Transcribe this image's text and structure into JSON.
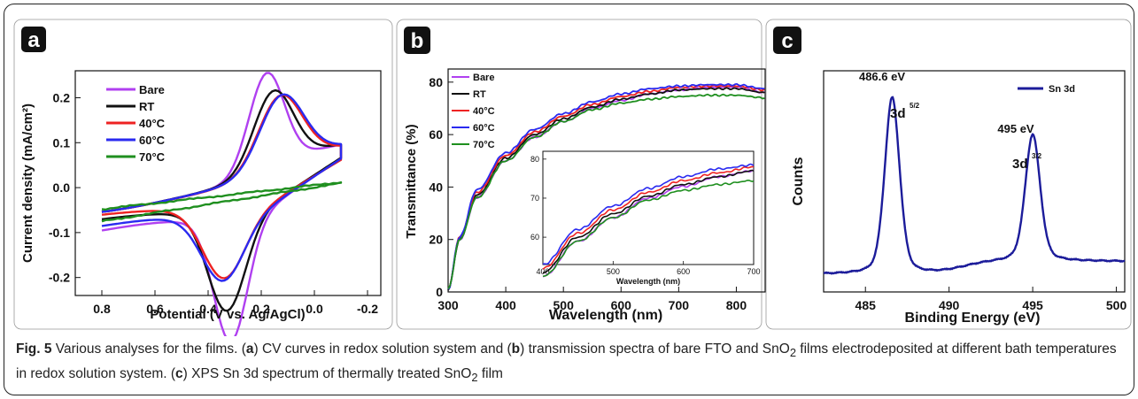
{
  "caption": {
    "label": "Fig. 5",
    "p1": " Various analyses for the films. (",
    "l_a": "a",
    "p2": ") CV curves in redox solution system and (",
    "l_b": "b",
    "p3": ") transmission spectra of bare FTO and SnO",
    "sub2": "2",
    "p4": " films electrodeposited at different bath temperatures in redox solution system. (",
    "l_c": "c",
    "p5": ") XPS Sn 3d spectrum of thermally treated SnO",
    "sub2b": "2",
    "p6": " film"
  },
  "colors": {
    "Bare": "#b040f0",
    "RT": "#111111",
    "40C": "#ee2222",
    "60C": "#2a2af0",
    "70C": "#1f8f1f",
    "Sn": "#1c1c9a"
  },
  "chart_data": [
    {
      "panel": "a",
      "type": "line",
      "xlabel": "Potential (V vs. Ag/AgCl)",
      "ylabel": "Current density (mA/cm²)",
      "xlim": [
        0.9,
        -0.25
      ],
      "ylim": [
        -0.24,
        0.26
      ],
      "xticks": [
        "0.8",
        "0.6",
        "0.4",
        "0.2",
        "0.0",
        "-0.2"
      ],
      "yticks": [
        "-0.2",
        "-0.1",
        "0.0",
        "0.1",
        "0.2"
      ],
      "legend": [
        "Bare",
        "RT",
        "40°C",
        "60°C",
        "70°C"
      ],
      "series": [
        {
          "name": "Bare",
          "peak_anodic": [
            0.18,
            0.207
          ],
          "peak_cathodic": [
            0.315,
            -0.218
          ]
        },
        {
          "name": "RT",
          "peak_anodic": [
            0.155,
            0.163
          ],
          "peak_cathodic": [
            0.33,
            -0.172
          ]
        },
        {
          "name": "40°C",
          "peak_anodic": [
            0.13,
            0.15
          ],
          "peak_cathodic": [
            0.34,
            -0.117
          ]
        },
        {
          "name": "60°C",
          "peak_anodic": [
            0.125,
            0.148
          ],
          "peak_cathodic": [
            0.345,
            -0.112
          ]
        },
        {
          "name": "70°C",
          "peak_anodic": [
            -0.1,
            0.012
          ],
          "peak_cathodic": [
            0.8,
            -0.075
          ]
        }
      ]
    },
    {
      "panel": "b",
      "type": "line",
      "xlabel": "Wavelength (nm)",
      "ylabel": "Transmittance (%)",
      "xlim": [
        300,
        850
      ],
      "ylim": [
        0,
        85
      ],
      "xticks": [
        "300",
        "400",
        "500",
        "600",
        "700",
        "800"
      ],
      "yticks": [
        "0",
        "20",
        "40",
        "60",
        "80"
      ],
      "legend": [
        "Bare",
        "RT",
        "40°C",
        "60°C",
        "70°C"
      ],
      "series": [
        {
          "name": "Bare",
          "x": [
            300,
            320,
            350,
            400,
            450,
            500,
            550,
            600,
            650,
            700,
            750,
            800,
            850
          ],
          "y": [
            1,
            20,
            36,
            50,
            59,
            65,
            70,
            73,
            75.5,
            77,
            78,
            78,
            76
          ]
        },
        {
          "name": "RT",
          "x": [
            300,
            320,
            350,
            400,
            450,
            500,
            550,
            600,
            650,
            700,
            750,
            800,
            850
          ],
          "y": [
            1,
            20,
            37,
            51,
            60,
            66,
            70.5,
            73.5,
            75.5,
            77,
            77.5,
            77.5,
            76
          ]
        },
        {
          "name": "40°C",
          "x": [
            300,
            320,
            350,
            400,
            450,
            500,
            550,
            600,
            650,
            700,
            750,
            800,
            850
          ],
          "y": [
            1,
            21,
            38,
            52,
            61,
            67,
            71.5,
            74.5,
            76.5,
            78,
            78.5,
            78.5,
            77
          ]
        },
        {
          "name": "60°C",
          "x": [
            300,
            320,
            350,
            400,
            450,
            500,
            550,
            600,
            650,
            700,
            750,
            800,
            850
          ],
          "y": [
            1,
            21,
            39,
            53,
            62,
            68,
            72.5,
            75.5,
            77.5,
            78.5,
            79,
            79,
            77.5
          ]
        },
        {
          "name": "70°C",
          "x": [
            300,
            320,
            350,
            400,
            450,
            500,
            550,
            600,
            650,
            700,
            750,
            800,
            850
          ],
          "y": [
            1,
            20,
            36,
            50,
            59,
            65,
            69.5,
            72,
            73.5,
            74.5,
            75,
            75,
            74
          ]
        }
      ],
      "inset": {
        "xlabel": "Wavelength (nm)",
        "xlim": [
          400,
          700
        ],
        "ylim": [
          53,
          82
        ],
        "xticks": [
          "400",
          "500",
          "600",
          "700"
        ],
        "yticks": [
          "60",
          "70",
          "80"
        ]
      }
    },
    {
      "panel": "c",
      "type": "line",
      "xlabel": "Binding Energy (eV)",
      "ylabel": "Counts",
      "xlim": [
        482.5,
        500.5
      ],
      "xticks": [
        "485",
        "490",
        "495",
        "500"
      ],
      "legend": [
        "Sn 3d"
      ],
      "annotations": [
        "486.6 eV",
        "3d",
        "5/2",
        "495 eV",
        "3d",
        "3/2"
      ],
      "series": [
        {
          "name": "Sn 3d",
          "peaks": [
            [
              486.6,
              1.0
            ],
            [
              495.0,
              0.73
            ]
          ],
          "baseline_left": 0.0,
          "baseline_right": 0.07
        }
      ]
    }
  ]
}
